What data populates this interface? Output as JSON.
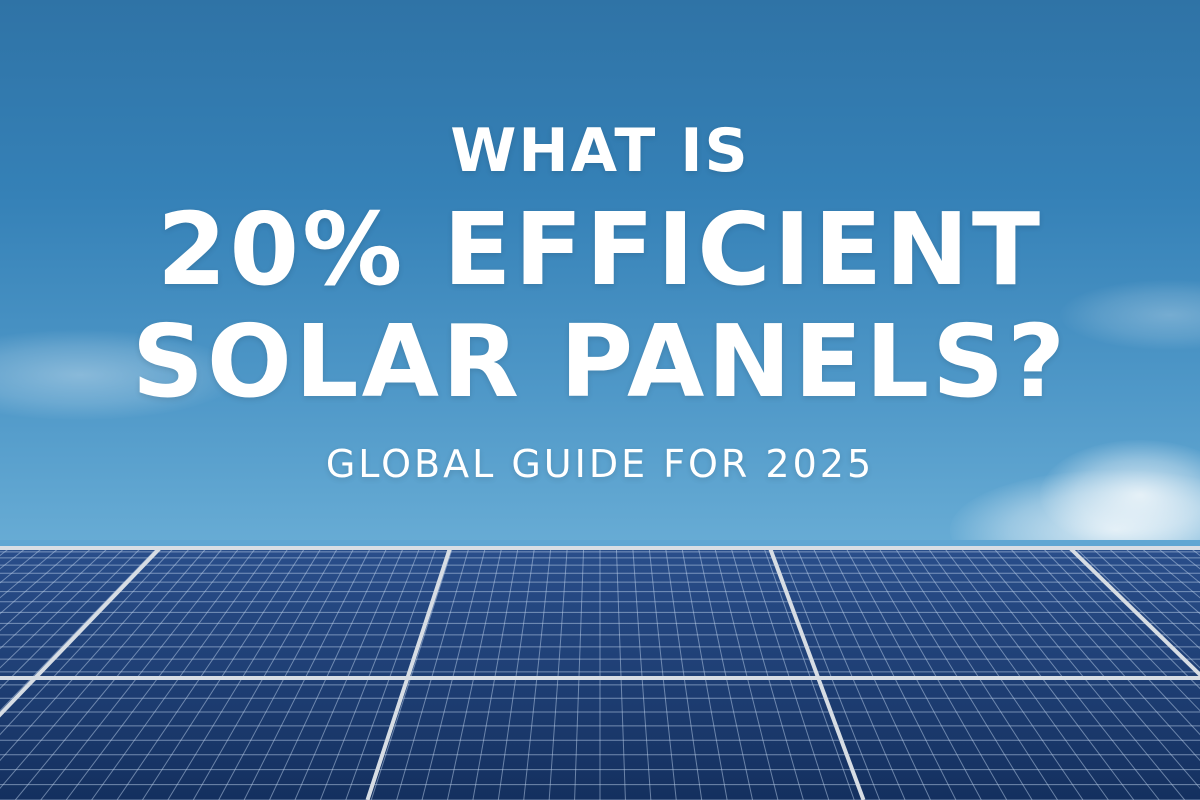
{
  "headline": {
    "line1": "WHAT IS",
    "line2": "20% EFFICIENT",
    "line3": "SOLAR PANELS?",
    "subtitle": "GLOBAL GUIDE FOR 2025"
  },
  "scene": {
    "background": "blue sky with light clouds",
    "foreground": "rows of blue monocrystalline solar panels",
    "colors": {
      "sky_top": "#2f73a6",
      "sky_bottom": "#6aaed6",
      "panel_cell": "#1d3f78",
      "panel_frame": "#cfd6de",
      "text": "#ffffff"
    }
  }
}
